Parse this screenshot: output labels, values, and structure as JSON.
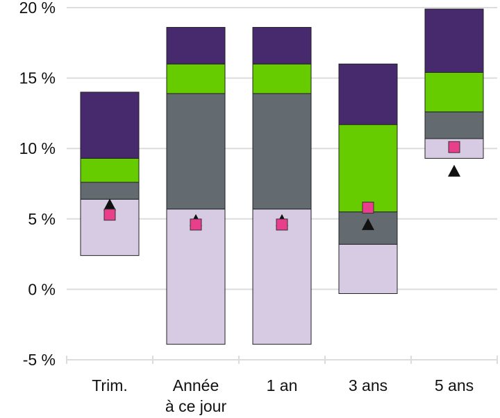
{
  "chart_data": {
    "type": "bar",
    "subtype": "floating-stacked-range",
    "title": "",
    "xlabel": "",
    "ylabel": "",
    "ylim": [
      -5,
      20
    ],
    "y_ticks": [
      {
        "value": -5,
        "label": "-5 %"
      },
      {
        "value": 0,
        "label": "0 %"
      },
      {
        "value": 5,
        "label": "5 %"
      },
      {
        "value": 10,
        "label": "10 %"
      },
      {
        "value": 15,
        "label": "15 %"
      },
      {
        "value": 20,
        "label": "20 %"
      }
    ],
    "grid": "horizontal",
    "legend": "none",
    "categories": [
      {
        "lines": [
          "Trim."
        ]
      },
      {
        "lines": [
          "Année",
          "à ce jour"
        ]
      },
      {
        "lines": [
          "1 an"
        ]
      },
      {
        "lines": [
          "3 ans"
        ]
      },
      {
        "lines": [
          "5 ans"
        ]
      }
    ],
    "band_colors": [
      "#d7cbe4",
      "#636b70",
      "#66cc00",
      "#472a6e"
    ],
    "band_boundaries": [
      [
        2.4,
        6.4,
        7.6,
        9.3,
        14.0
      ],
      [
        -3.9,
        5.7,
        13.9,
        16.0,
        18.6
      ],
      [
        -3.9,
        5.7,
        13.9,
        16.0,
        18.6
      ],
      [
        -0.3,
        3.2,
        5.5,
        11.7,
        16.0
      ],
      [
        9.3,
        10.7,
        12.6,
        15.4,
        19.9
      ]
    ],
    "markers": [
      {
        "shape": "triangle",
        "color": "#111111",
        "values": [
          6.0,
          4.9,
          4.9,
          4.6,
          8.4
        ]
      },
      {
        "shape": "square",
        "color": "#e83e8c",
        "values": [
          5.3,
          4.6,
          4.6,
          5.8,
          10.1
        ]
      }
    ]
  }
}
